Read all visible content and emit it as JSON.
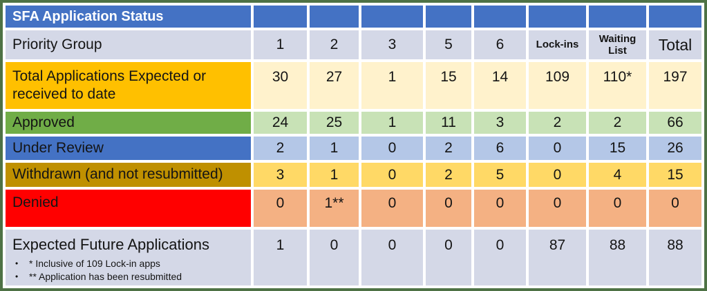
{
  "table": {
    "title": "SFA Application Status",
    "header_label": "Priority Group",
    "columns": [
      "1",
      "2",
      "3",
      "5",
      "6",
      "Lock-ins",
      "Waiting List",
      "Total"
    ],
    "rows": [
      {
        "label": "Total Applications Expected or received to date",
        "values": [
          "30",
          "27",
          "1",
          "15",
          "14",
          "109",
          "110*",
          "197"
        ]
      },
      {
        "label": "Approved",
        "values": [
          "24",
          "25",
          "1",
          "11",
          "3",
          "2",
          "2",
          "66"
        ]
      },
      {
        "label": "Under Review",
        "values": [
          "2",
          "1",
          "0",
          "2",
          "6",
          "0",
          "15",
          "26"
        ]
      },
      {
        "label": "Withdrawn (and not resubmitted)",
        "values": [
          "3",
          "1",
          "0",
          "2",
          "5",
          "0",
          "4",
          "15"
        ]
      },
      {
        "label": "Denied",
        "values": [
          "0",
          "1**",
          "0",
          "0",
          "0",
          "0",
          "0",
          "0"
        ]
      },
      {
        "label": "Expected Future Applications",
        "values": [
          "1",
          "0",
          "0",
          "0",
          "0",
          "87",
          "88",
          "88"
        ]
      }
    ],
    "footnotes": [
      "* Inclusive of 109 Lock-in apps",
      "** Application has been resubmitted"
    ]
  },
  "chart_data": {
    "type": "table",
    "title": "SFA Application Status",
    "columns": [
      "Priority Group",
      "1",
      "2",
      "3",
      "5",
      "6",
      "Lock-ins",
      "Waiting List",
      "Total"
    ],
    "rows": [
      [
        "Total Applications Expected or received to date",
        30,
        27,
        1,
        15,
        14,
        109,
        "110*",
        197
      ],
      [
        "Approved",
        24,
        25,
        1,
        11,
        3,
        2,
        2,
        66
      ],
      [
        "Under Review",
        2,
        1,
        0,
        2,
        6,
        0,
        15,
        26
      ],
      [
        "Withdrawn (and not resubmitted)",
        3,
        1,
        0,
        2,
        5,
        0,
        4,
        15
      ],
      [
        "Denied",
        0,
        "1**",
        0,
        0,
        0,
        0,
        0,
        0
      ],
      [
        "Expected Future Applications",
        1,
        0,
        0,
        0,
        0,
        87,
        88,
        88
      ]
    ],
    "footnotes": [
      "* Inclusive of 109 Lock-in apps",
      "** Application has been resubmitted"
    ]
  },
  "colors": {
    "border_green": "#4E7245",
    "title_blue": "#4472C4",
    "lavender": "#D4D8E7",
    "gold_label": "#FFC000",
    "cream": "#FFF2CC",
    "green_label": "#70AD47",
    "light_green": "#C8E2B6",
    "blue_label": "#4472C4",
    "light_blue": "#B4C7E7",
    "dark_gold": "#BF9000",
    "yellow": "#FFD966",
    "red": "#FF0000",
    "light_orange": "#F4B183"
  }
}
